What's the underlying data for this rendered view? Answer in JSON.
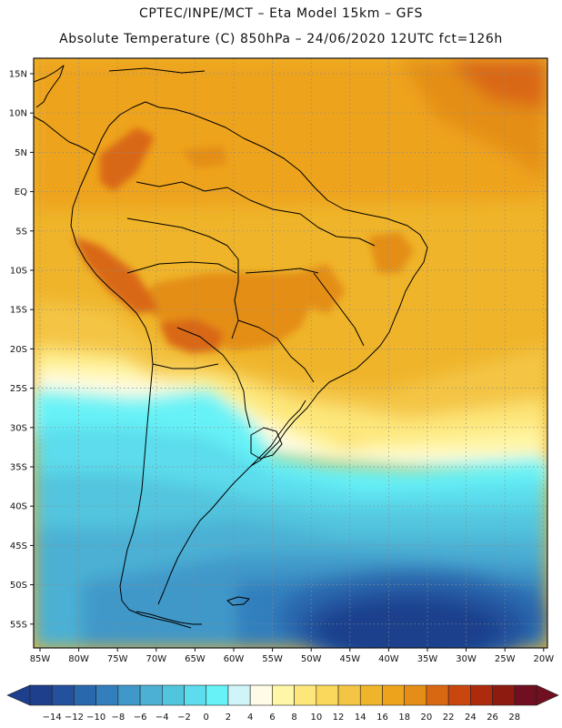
{
  "header": {
    "line1": "CPTEC/INPE/MCT –  Eta Model 15km – GFS",
    "line2": "Absolute Temperature (C) 850hPa – 24/06/2020 12UTC fct=126h"
  },
  "axes": {
    "lat_labels": [
      "15N",
      "10N",
      "5N",
      "EQ",
      "5S",
      "10S",
      "15S",
      "20S",
      "25S",
      "30S",
      "35S",
      "40S",
      "45S",
      "50S",
      "55S"
    ],
    "lon_labels": [
      "85W",
      "80W",
      "75W",
      "70W",
      "65W",
      "60W",
      "55W",
      "50W",
      "45W",
      "40W",
      "35W",
      "30W",
      "25W",
      "20W"
    ]
  },
  "colorbar": {
    "labels": [
      "-14",
      "-12",
      "-10",
      "-8",
      "-6",
      "-4",
      "-2",
      "0",
      "2",
      "4",
      "6",
      "8",
      "10",
      "12",
      "14",
      "16",
      "18",
      "20",
      "22",
      "24",
      "26",
      "28"
    ],
    "colors": [
      "#1e3f8c",
      "#23519d",
      "#2a68ad",
      "#337fbd",
      "#3f98c9",
      "#4cb0d4",
      "#52c5de",
      "#5cdcec",
      "#66f2f7",
      "#cff5f8",
      "#fffbe6",
      "#fff6a6",
      "#fde77a",
      "#f9d85c",
      "#f4c545",
      "#efb42a",
      "#eea31c",
      "#e48e18",
      "#d96812",
      "#c9470e",
      "#ad2a0c",
      "#8d1b10",
      "#6f0f20"
    ]
  },
  "colors": {
    "frame": "#111111",
    "coast": "#000000",
    "grid": "#8a8a8a"
  }
}
